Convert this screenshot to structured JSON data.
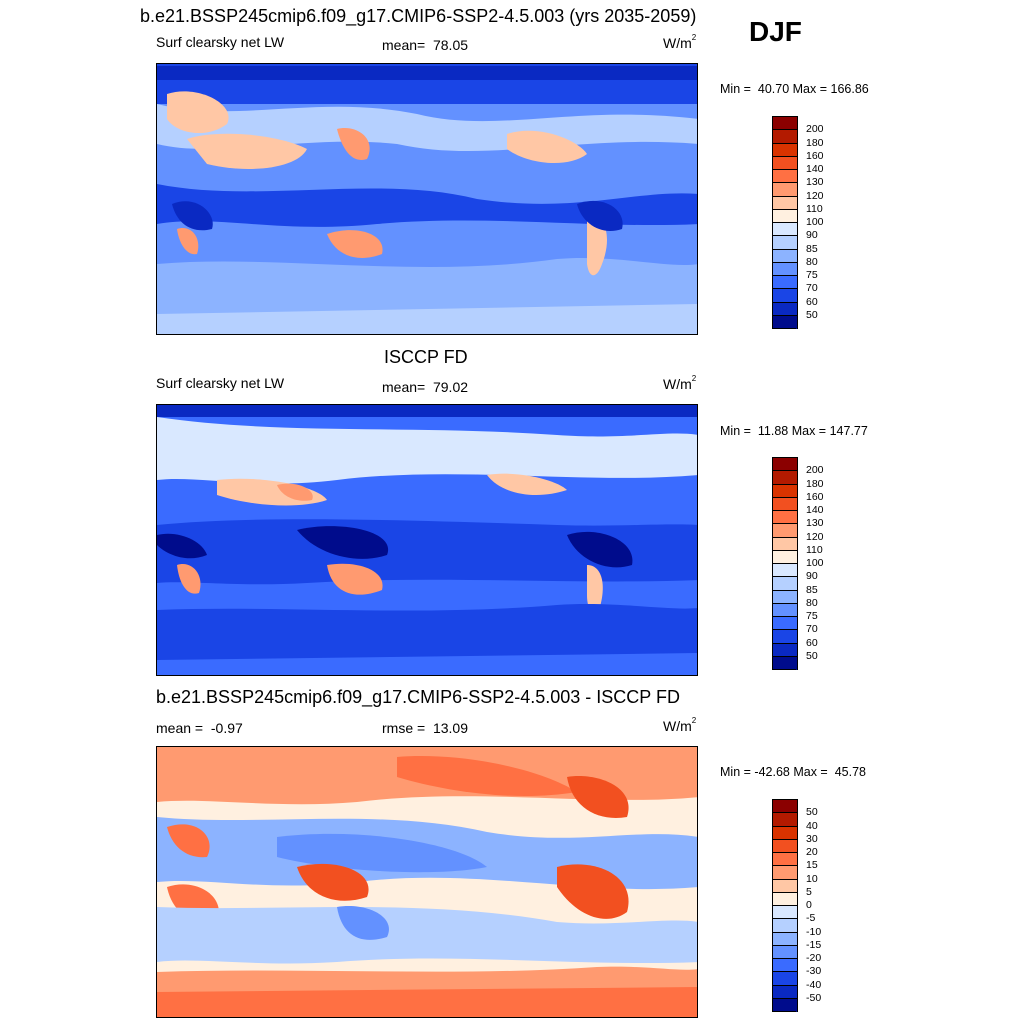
{
  "season": "DJF",
  "panels": [
    {
      "title": "b.e21.BSSP245cmip6.f09_g17.CMIP6-SSP2-4.5.003 (yrs 2035-2059)",
      "left": "Surf clearsky net LW",
      "center_label": "mean=",
      "center_value": "78.05",
      "units": "W/m",
      "units_sup": "2",
      "min_label": "Min =",
      "min_value": "40.70",
      "max_label": "Max =",
      "max_value": "166.86",
      "colorbar": {
        "levels": [
          "200",
          "180",
          "160",
          "140",
          "130",
          "120",
          "110",
          "100",
          "90",
          "85",
          "80",
          "75",
          "70",
          "60",
          "50"
        ],
        "colors": [
          "#8b0000",
          "#b31a00",
          "#d93300",
          "#f25020",
          "#ff7043",
          "#ff9a70",
          "#ffc7a5",
          "#fff0e0",
          "#d9e8ff",
          "#b5d0ff",
          "#8cb3ff",
          "#6391ff",
          "#3a6bff",
          "#1a45e6",
          "#0a29c2",
          "#000c8c"
        ]
      }
    },
    {
      "title": "ISCCP FD",
      "left": "Surf clearsky net LW",
      "center_label": "mean=",
      "center_value": "79.02",
      "units": "W/m",
      "units_sup": "2",
      "min_label": "Min =",
      "min_value": "11.88",
      "max_label": "Max =",
      "max_value": "147.77",
      "colorbar": {
        "levels": [
          "200",
          "180",
          "160",
          "140",
          "130",
          "120",
          "110",
          "100",
          "90",
          "85",
          "80",
          "75",
          "70",
          "60",
          "50"
        ],
        "colors": [
          "#8b0000",
          "#b31a00",
          "#d93300",
          "#f25020",
          "#ff7043",
          "#ff9a70",
          "#ffc7a5",
          "#fff0e0",
          "#d9e8ff",
          "#b5d0ff",
          "#8cb3ff",
          "#6391ff",
          "#3a6bff",
          "#1a45e6",
          "#0a29c2",
          "#000c8c"
        ]
      }
    },
    {
      "title": "b.e21.BSSP245cmip6.f09_g17.CMIP6-SSP2-4.5.003 - ISCCP FD",
      "left_label": "mean =",
      "left_value": "-0.97",
      "center_label": "rmse =",
      "center_value": "13.09",
      "units": "W/m",
      "units_sup": "2",
      "min_label": "Min =",
      "min_value": "-42.68",
      "max_label": "Max =",
      "max_value": "45.78",
      "colorbar": {
        "levels": [
          "50",
          "40",
          "30",
          "20",
          "15",
          "10",
          "5",
          "0",
          "-5",
          "-10",
          "-15",
          "-20",
          "-30",
          "-40",
          "-50"
        ],
        "colors": [
          "#8b0000",
          "#b31a00",
          "#d93300",
          "#f25020",
          "#ff7043",
          "#ff9a70",
          "#ffc7a5",
          "#fff0e0",
          "#d9e8ff",
          "#b5d0ff",
          "#8cb3ff",
          "#6391ff",
          "#3a6bff",
          "#1a45e6",
          "#0a29c2",
          "#000c8c"
        ]
      }
    }
  ]
}
